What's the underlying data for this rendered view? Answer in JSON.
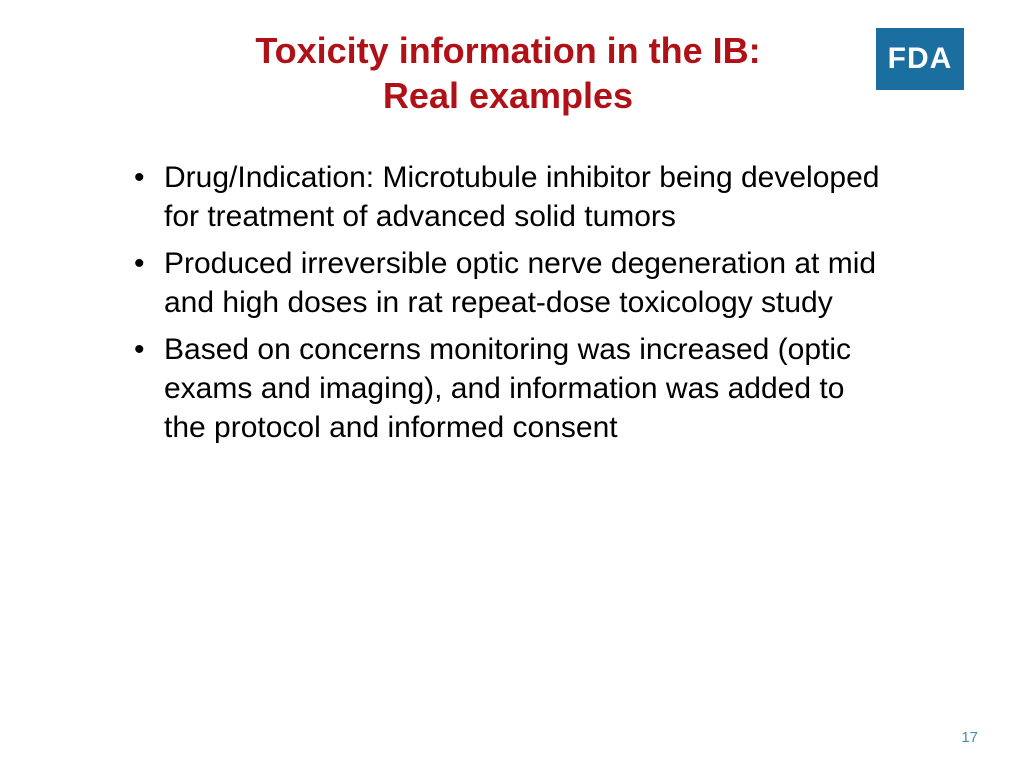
{
  "title": {
    "line1": "Toxicity information in the IB:",
    "line2": "Real examples",
    "color": "#b01117",
    "fontsize": 36
  },
  "logo": {
    "text": "FDA",
    "background": "#1a6ea0",
    "text_color": "#ffffff"
  },
  "bullets": {
    "items": [
      "Drug/Indication: Microtubule inhibitor being developed for treatment of advanced solid tumors",
      "Produced irreversible optic nerve degeneration at mid and high doses in rat repeat-dose toxicology study",
      "Based on concerns monitoring was increased (optic exams and imaging), and information was added to the protocol and informed consent"
    ],
    "fontsize": 30,
    "color": "#000000"
  },
  "page_number": "17",
  "page_number_color": "#4a8ab8",
  "background": "#ffffff"
}
